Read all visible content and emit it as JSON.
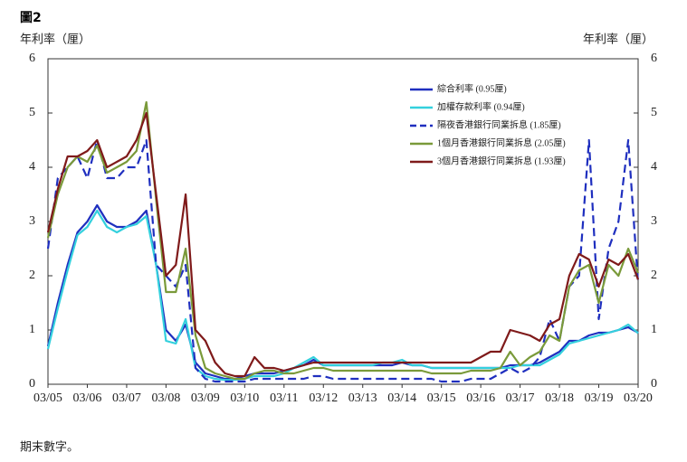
{
  "chart_data": {
    "type": "line",
    "title": "圖2",
    "y_label": "年利率（厘）",
    "y2_label": "年利率（厘）",
    "footnote": "期末數字。",
    "categories": [
      "03/05",
      null,
      null,
      null,
      "03/06",
      null,
      null,
      null,
      "03/07",
      null,
      null,
      null,
      "03/08",
      null,
      null,
      null,
      "03/09",
      null,
      null,
      null,
      "03/10",
      null,
      null,
      null,
      "03/11",
      null,
      null,
      null,
      "03/12",
      null,
      null,
      null,
      "03/13",
      null,
      null,
      null,
      "03/14",
      null,
      null,
      null,
      "03/15",
      null,
      null,
      null,
      "03/16",
      null,
      null,
      null,
      "03/17",
      null,
      null,
      null,
      "03/18",
      null,
      null,
      null,
      "03/19",
      null,
      null,
      null,
      "03/20"
    ],
    "ylim": [
      0,
      6
    ],
    "yticks": [
      0,
      1,
      2,
      3,
      4,
      5,
      6
    ],
    "series": [
      {
        "name": "綜合利率 (0.95厘)",
        "color": "#1f2fbf",
        "dashed": false,
        "values": [
          0.7,
          1.5,
          2.2,
          2.8,
          3.0,
          3.3,
          3.0,
          2.9,
          2.9,
          3.0,
          3.2,
          2.2,
          1.0,
          0.8,
          1.1,
          0.4,
          0.2,
          0.15,
          0.1,
          0.1,
          0.15,
          0.2,
          0.2,
          0.2,
          0.25,
          0.3,
          0.35,
          0.45,
          0.35,
          0.35,
          0.35,
          0.35,
          0.35,
          0.35,
          0.35,
          0.35,
          0.4,
          0.35,
          0.35,
          0.3,
          0.3,
          0.3,
          0.3,
          0.3,
          0.3,
          0.3,
          0.3,
          0.35,
          0.35,
          0.35,
          0.4,
          0.5,
          0.6,
          0.8,
          0.8,
          0.9,
          0.95,
          0.95,
          1.0,
          1.05,
          0.95
        ]
      },
      {
        "name": "加權存款利率 (0.94厘)",
        "color": "#33d0dd",
        "dashed": false,
        "values": [
          0.65,
          1.4,
          2.1,
          2.75,
          2.9,
          3.2,
          2.9,
          2.8,
          2.9,
          2.95,
          3.1,
          2.2,
          0.8,
          0.75,
          1.2,
          0.3,
          0.15,
          0.1,
          0.08,
          0.08,
          0.1,
          0.15,
          0.15,
          0.15,
          0.2,
          0.3,
          0.4,
          0.5,
          0.35,
          0.35,
          0.35,
          0.35,
          0.35,
          0.35,
          0.4,
          0.4,
          0.45,
          0.35,
          0.35,
          0.3,
          0.3,
          0.3,
          0.3,
          0.3,
          0.3,
          0.3,
          0.3,
          0.3,
          0.35,
          0.35,
          0.35,
          0.45,
          0.55,
          0.75,
          0.8,
          0.85,
          0.9,
          0.95,
          1.0,
          1.1,
          0.94
        ]
      },
      {
        "name": "隔夜香港銀行同業拆息 (1.85厘)",
        "color": "#1f2fbf",
        "dashed": true,
        "values": [
          2.5,
          3.8,
          4.0,
          4.2,
          3.8,
          4.5,
          3.8,
          3.8,
          4.0,
          4.0,
          4.5,
          2.2,
          2.0,
          1.8,
          2.2,
          0.3,
          0.1,
          0.05,
          0.05,
          0.05,
          0.05,
          0.1,
          0.1,
          0.1,
          0.1,
          0.1,
          0.1,
          0.15,
          0.15,
          0.1,
          0.1,
          0.1,
          0.1,
          0.1,
          0.1,
          0.1,
          0.1,
          0.1,
          0.1,
          0.1,
          0.05,
          0.05,
          0.05,
          0.1,
          0.1,
          0.1,
          0.2,
          0.3,
          0.2,
          0.3,
          0.5,
          1.2,
          0.8,
          1.8,
          2.0,
          4.5,
          1.2,
          2.5,
          3.0,
          4.5,
          1.85
        ]
      },
      {
        "name": "1個月香港銀行同業拆息 (2.05厘)",
        "color": "#7a9a3a",
        "dashed": false,
        "values": [
          2.7,
          3.5,
          4.0,
          4.2,
          4.1,
          4.4,
          3.9,
          4.0,
          4.1,
          4.3,
          5.2,
          3.4,
          1.7,
          1.7,
          2.5,
          0.9,
          0.3,
          0.2,
          0.15,
          0.1,
          0.1,
          0.2,
          0.25,
          0.25,
          0.2,
          0.2,
          0.25,
          0.3,
          0.3,
          0.25,
          0.25,
          0.25,
          0.25,
          0.25,
          0.25,
          0.25,
          0.25,
          0.25,
          0.25,
          0.2,
          0.2,
          0.2,
          0.2,
          0.25,
          0.25,
          0.25,
          0.3,
          0.6,
          0.35,
          0.5,
          0.6,
          0.9,
          0.8,
          1.8,
          2.1,
          2.2,
          1.5,
          2.2,
          2.0,
          2.5,
          2.05
        ]
      },
      {
        "name": "3個月香港銀行同業拆息 (1.93厘)",
        "color": "#7f1a1a",
        "dashed": false,
        "values": [
          2.8,
          3.6,
          4.2,
          4.2,
          4.3,
          4.5,
          4.0,
          4.1,
          4.2,
          4.5,
          5.0,
          3.5,
          2.0,
          2.2,
          3.5,
          1.0,
          0.8,
          0.4,
          0.2,
          0.15,
          0.15,
          0.5,
          0.3,
          0.3,
          0.25,
          0.3,
          0.35,
          0.4,
          0.4,
          0.4,
          0.4,
          0.4,
          0.4,
          0.4,
          0.4,
          0.4,
          0.4,
          0.4,
          0.4,
          0.4,
          0.4,
          0.4,
          0.4,
          0.4,
          0.5,
          0.6,
          0.6,
          1.0,
          0.95,
          0.9,
          0.8,
          1.1,
          1.2,
          2.0,
          2.4,
          2.3,
          1.8,
          2.3,
          2.2,
          2.4,
          1.93
        ]
      }
    ]
  }
}
